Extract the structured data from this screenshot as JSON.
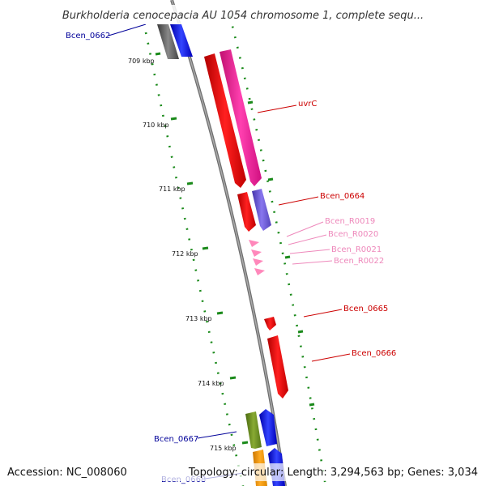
{
  "title": "Burkholderia cenocepacia AU 1054 chromosome 1, complete sequ...",
  "footer": {
    "accession": "Accession: NC_008060",
    "summary": "Topology: circular; Length: 3,294,563 bp; Genes: 3,034"
  },
  "scale_labels": [
    "709 kbp",
    "710 kbp",
    "711 kbp",
    "712 kbp",
    "713 kbp",
    "714 kbp",
    "715 kbp"
  ],
  "gene_labels": {
    "bcen0662": "Bcen_0662",
    "uvrc": "uvrC",
    "bcen0664": "Bcen_0664",
    "bcenr0019": "Bcen_R0019",
    "bcenr0020": "Bcen_R0020",
    "bcenr0021": "Bcen_R0021",
    "bcenr0022": "Bcen_R0022",
    "bcen0665": "Bcen_0665",
    "bcen0666": "Bcen_0666",
    "bcen0667": "Bcen_0667",
    "bcen0668": "Bcen_0668"
  },
  "colors": {
    "backbone": "#808080",
    "scale_dots": "#1a8a1a",
    "forward_label": "#000099",
    "reverse_label": "#cc0000",
    "rna_label": "#ee88bb",
    "gene_red": "#ee0000",
    "gene_pink": "#ff33aa",
    "gene_purple": "#6655cc",
    "gene_gray": "#666666",
    "gene_blue": "#0000ee",
    "gene_olive": "#669922",
    "gene_orange": "#ff9900",
    "rna_pink": "#ff88bb"
  }
}
